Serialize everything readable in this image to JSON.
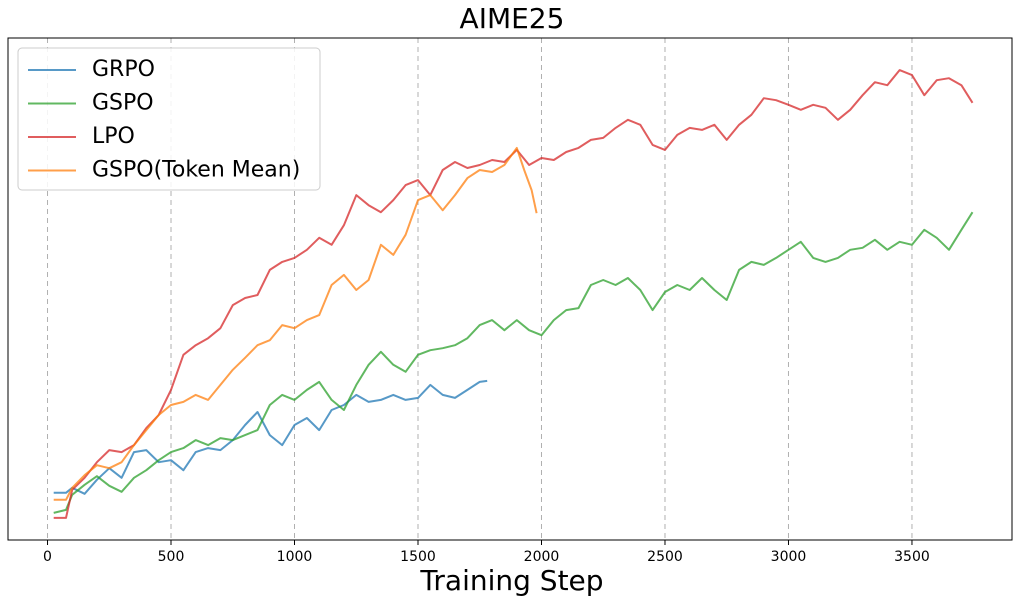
{
  "chart_data": {
    "type": "line",
    "title": "AIME25",
    "x_label": "Training Step",
    "xlim": [
      -160,
      3905
    ],
    "ylim": [
      0,
      100
    ],
    "xticks": [
      0,
      500,
      1000,
      1500,
      2000,
      2500,
      3000,
      3500
    ],
    "grid": true,
    "legend": "upper left",
    "series": [
      {
        "name": "GRPO",
        "color": "#1f77b4",
        "x": [
          25,
          75,
          100,
          150,
          200,
          250,
          300,
          350,
          400,
          450,
          500,
          550,
          600,
          650,
          700,
          750,
          800,
          850,
          900,
          950,
          1000,
          1050,
          1100,
          1150,
          1200,
          1250,
          1300,
          1350,
          1400,
          1450,
          1500,
          1550,
          1600,
          1650,
          1700,
          1750,
          1780
        ],
        "values": [
          9.4,
          9.4,
          10.4,
          9.2,
          12.0,
          14.3,
          12.4,
          17.5,
          17.9,
          15.5,
          15.9,
          13.9,
          17.5,
          18.3,
          17.9,
          19.9,
          22.9,
          25.5,
          20.9,
          18.9,
          22.9,
          24.3,
          21.9,
          25.9,
          26.9,
          28.9,
          27.5,
          27.9,
          28.9,
          27.9,
          28.3,
          30.9,
          28.9,
          28.3,
          29.9,
          31.5,
          31.7
        ]
      },
      {
        "name": "GSPO",
        "color": "#2ca02c",
        "x": [
          25,
          75,
          100,
          150,
          200,
          250,
          300,
          350,
          400,
          450,
          500,
          550,
          600,
          650,
          700,
          750,
          800,
          850,
          900,
          950,
          1000,
          1050,
          1100,
          1150,
          1200,
          1250,
          1300,
          1350,
          1400,
          1450,
          1500,
          1550,
          1600,
          1650,
          1700,
          1750,
          1800,
          1850,
          1900,
          1950,
          2000,
          2050,
          2100,
          2150,
          2200,
          2250,
          2300,
          2350,
          2400,
          2450,
          2500,
          2550,
          2600,
          2650,
          2700,
          2750,
          2800,
          2850,
          2900,
          2950,
          3000,
          3050,
          3100,
          3150,
          3200,
          3250,
          3300,
          3350,
          3400,
          3450,
          3500,
          3550,
          3600,
          3650,
          3700,
          3745
        ],
        "values": [
          5.4,
          6.0,
          9.0,
          11.0,
          12.7,
          10.8,
          9.6,
          12.4,
          13.9,
          15.9,
          17.5,
          18.3,
          19.9,
          18.9,
          20.3,
          19.9,
          20.9,
          21.9,
          26.9,
          28.9,
          27.9,
          29.9,
          31.5,
          27.9,
          25.9,
          30.9,
          34.9,
          37.5,
          34.9,
          33.5,
          36.9,
          37.8,
          38.2,
          38.8,
          40.2,
          42.8,
          43.8,
          41.8,
          43.8,
          41.8,
          40.8,
          43.8,
          45.8,
          46.2,
          50.8,
          51.8,
          50.8,
          52.2,
          49.8,
          45.8,
          49.4,
          50.8,
          49.8,
          52.2,
          49.8,
          47.8,
          53.8,
          55.4,
          54.8,
          56.2,
          57.8,
          59.4,
          56.2,
          55.4,
          56.2,
          57.8,
          58.2,
          59.8,
          57.8,
          59.4,
          58.8,
          61.8,
          60.2,
          57.8,
          61.8,
          65.3
        ]
      },
      {
        "name": "LPO",
        "color": "#d62728",
        "x": [
          25,
          75,
          100,
          150,
          200,
          250,
          300,
          350,
          400,
          450,
          500,
          550,
          600,
          650,
          700,
          750,
          800,
          850,
          900,
          950,
          1000,
          1050,
          1100,
          1150,
          1200,
          1250,
          1300,
          1350,
          1400,
          1450,
          1500,
          1550,
          1600,
          1650,
          1700,
          1750,
          1800,
          1850,
          1900,
          1950,
          2000,
          2050,
          2100,
          2150,
          2200,
          2250,
          2300,
          2350,
          2400,
          2450,
          2500,
          2550,
          2600,
          2650,
          2700,
          2750,
          2800,
          2850,
          2900,
          2950,
          3000,
          3050,
          3100,
          3150,
          3200,
          3250,
          3300,
          3350,
          3400,
          3450,
          3500,
          3550,
          3600,
          3650,
          3700,
          3745
        ],
        "values": [
          4.4,
          4.4,
          10.0,
          12.4,
          15.5,
          17.9,
          17.5,
          18.9,
          22.3,
          24.9,
          29.9,
          36.9,
          38.8,
          40.2,
          42.2,
          46.8,
          48.2,
          48.8,
          53.8,
          55.4,
          56.2,
          57.8,
          60.2,
          58.8,
          62.7,
          68.7,
          66.7,
          65.3,
          67.7,
          70.7,
          71.7,
          68.7,
          73.7,
          75.3,
          74.1,
          74.7,
          75.7,
          75.3,
          77.7,
          74.7,
          76.1,
          75.7,
          77.3,
          78.1,
          79.7,
          80.1,
          82.1,
          83.7,
          82.7,
          78.7,
          77.7,
          80.7,
          82.1,
          81.7,
          82.7,
          79.7,
          82.7,
          84.7,
          88.0,
          87.6,
          86.7,
          85.7,
          86.7,
          86.1,
          83.7,
          85.7,
          88.6,
          91.2,
          90.6,
          93.6,
          92.6,
          88.6,
          91.6,
          92.0,
          90.6,
          87.1
        ]
      },
      {
        "name": "GSPO(Token Mean)",
        "color": "#ff7f0e",
        "x": [
          25,
          75,
          100,
          150,
          200,
          250,
          300,
          350,
          400,
          450,
          500,
          550,
          600,
          650,
          700,
          750,
          800,
          850,
          900,
          950,
          1000,
          1050,
          1100,
          1150,
          1200,
          1250,
          1300,
          1350,
          1400,
          1450,
          1500,
          1550,
          1600,
          1650,
          1700,
          1750,
          1800,
          1850,
          1900,
          1930,
          1960,
          1980
        ],
        "values": [
          8.0,
          8.0,
          10.4,
          12.9,
          14.9,
          14.3,
          15.5,
          18.9,
          21.9,
          24.9,
          26.9,
          27.5,
          28.9,
          27.9,
          30.9,
          33.9,
          36.3,
          38.8,
          39.8,
          42.8,
          42.2,
          43.8,
          44.8,
          50.8,
          52.8,
          49.8,
          51.8,
          58.8,
          56.8,
          60.8,
          67.7,
          68.7,
          65.7,
          68.7,
          72.1,
          73.7,
          73.3,
          74.7,
          78.1,
          73.7,
          69.7,
          65.1
        ]
      }
    ]
  }
}
